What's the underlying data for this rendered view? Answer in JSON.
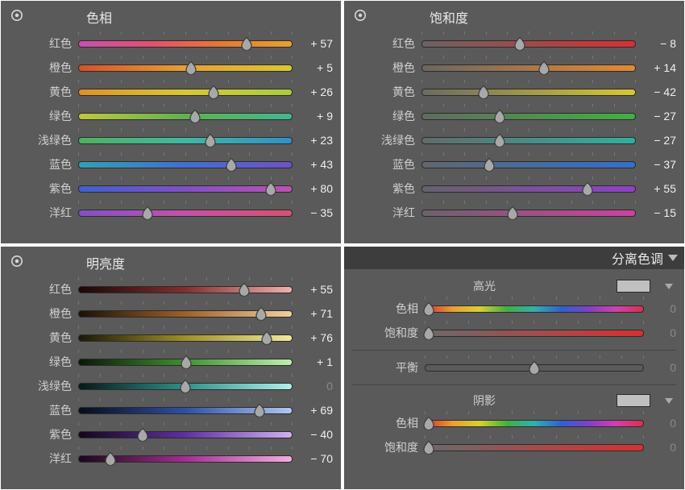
{
  "ui": {
    "track_border": "#2b2b2b",
    "thumb_fill": "#a8a8a8",
    "thumb_stroke": "#3a3a3a",
    "tick_color": "#777777",
    "panel_bg": "#5a5a5a",
    "dark_header_bg": "#3d3d3d"
  },
  "gradients": {
    "red_hue": "linear-gradient(to right,#c94fb0,#e05070,#e87830,#e8a030)",
    "orange_hue": "linear-gradient(to right,#d8502a,#e8a030,#d8c830)",
    "yellow_hue": "linear-gradient(to right,#e09028,#d8c830,#a8cc40)",
    "green_hue": "linear-gradient(to right,#c0c838,#60b050,#40b890)",
    "aqua_hue": "linear-gradient(to right,#50b060,#40b8a0,#3090c8)",
    "blue_hue": "linear-gradient(to right,#30a0b8,#4070d0,#7050c8)",
    "purple_hue": "linear-gradient(to right,#4060d0,#8050c8,#c050b0)",
    "magenta_hue": "linear-gradient(to right,#8050c8,#c850a8,#d85070)",
    "red_sat": "linear-gradient(to right,#6a6262,#d83030)",
    "orange_sat": "linear-gradient(to right,#6a6662,#e88830)",
    "yellow_sat": "linear-gradient(to right,#6a6a62,#d8c830)",
    "green_sat": "linear-gradient(to right,#626a62,#40b040)",
    "aqua_sat": "linear-gradient(to right,#626a6a,#30b0a0)",
    "blue_sat": "linear-gradient(to right,#62666a,#3070d0)",
    "purple_sat": "linear-gradient(to right,#66626a,#9040c8)",
    "magenta_sat": "linear-gradient(to right,#6a626a,#d040a0)",
    "red_lum": "linear-gradient(to right,#1a0808,#803030,#f0b0b0)",
    "orange_lum": "linear-gradient(to right,#1a1208,#a06028,#f0d0a0)",
    "yellow_lum": "linear-gradient(to right,#1a1808,#a09028,#f0e8a0)",
    "green_lum": "linear-gradient(to right,#0a1808,#409030,#c0f0b0)",
    "aqua_lum": "linear-gradient(to right,#081818,#309088,#b0f0e8)",
    "blue_lum": "linear-gradient(to right,#080c1a,#3050a0,#b0c8f0)",
    "purple_lum": "linear-gradient(to right,#12081a,#6030a0,#d0b0f0)",
    "magenta_lum": "linear-gradient(to right,#1a081a,#a03090,#f0b0e0)",
    "hue_full": "linear-gradient(to right,#d83030,#e8a030,#d8d030,#40b040,#30b0b0,#3060d0,#8040c8,#d040b0,#d83050)",
    "sat_full": "linear-gradient(to right,#6a6a6a,#d83030)",
    "balance": "linear-gradient(to right,#5a5a5a,#5a5a5a)"
  },
  "panels": {
    "hue": {
      "title": "色相",
      "rows": [
        {
          "label": "红色",
          "value": 57,
          "grad": "red_hue"
        },
        {
          "label": "橙色",
          "value": 5,
          "grad": "orange_hue"
        },
        {
          "label": "黄色",
          "value": 26,
          "grad": "yellow_hue"
        },
        {
          "label": "绿色",
          "value": 9,
          "grad": "green_hue"
        },
        {
          "label": "浅绿色",
          "value": 23,
          "grad": "aqua_hue"
        },
        {
          "label": "蓝色",
          "value": 43,
          "grad": "blue_hue"
        },
        {
          "label": "紫色",
          "value": 80,
          "grad": "purple_hue"
        },
        {
          "label": "洋红",
          "value": -35,
          "grad": "magenta_hue"
        }
      ]
    },
    "sat": {
      "title": "饱和度",
      "rows": [
        {
          "label": "红色",
          "value": -8,
          "grad": "red_sat"
        },
        {
          "label": "橙色",
          "value": 14,
          "grad": "orange_sat"
        },
        {
          "label": "黄色",
          "value": -42,
          "grad": "yellow_sat"
        },
        {
          "label": "绿色",
          "value": -27,
          "grad": "green_sat"
        },
        {
          "label": "浅绿色",
          "value": -27,
          "grad": "aqua_sat"
        },
        {
          "label": "蓝色",
          "value": -37,
          "grad": "blue_sat"
        },
        {
          "label": "紫色",
          "value": 55,
          "grad": "purple_sat"
        },
        {
          "label": "洋红",
          "value": -15,
          "grad": "magenta_sat"
        }
      ]
    },
    "lum": {
      "title": "明亮度",
      "rows": [
        {
          "label": "红色",
          "value": 55,
          "grad": "red_lum"
        },
        {
          "label": "橙色",
          "value": 71,
          "grad": "orange_lum"
        },
        {
          "label": "黄色",
          "value": 76,
          "grad": "yellow_lum"
        },
        {
          "label": "绿色",
          "value": 1,
          "grad": "green_lum"
        },
        {
          "label": "浅绿色",
          "value": 0,
          "grad": "aqua_lum"
        },
        {
          "label": "蓝色",
          "value": 69,
          "grad": "blue_lum"
        },
        {
          "label": "紫色",
          "value": -40,
          "grad": "purple_lum"
        },
        {
          "label": "洋红",
          "value": -70,
          "grad": "magenta_lum"
        }
      ]
    },
    "split": {
      "title": "分离色调",
      "highlight_label": "高光",
      "shadow_label": "阴影",
      "hue_label": "色相",
      "sat_label": "饱和度",
      "balance_label": "平衡",
      "highlights": {
        "hue": 0,
        "sat": 0
      },
      "balance": 0,
      "shadows": {
        "hue": 0,
        "sat": 0
      }
    }
  }
}
